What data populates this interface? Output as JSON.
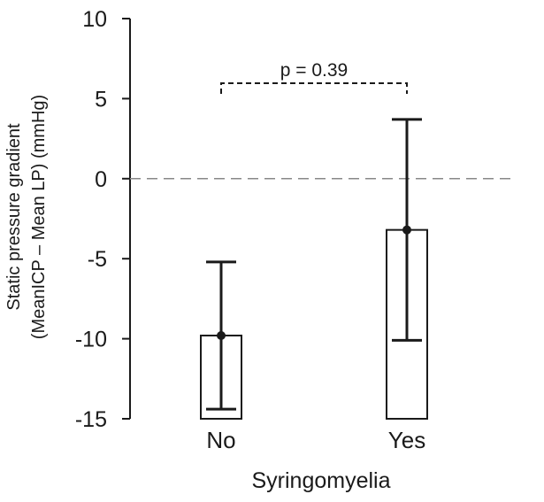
{
  "chart_data": {
    "type": "bar",
    "categories": [
      "No",
      "Yes"
    ],
    "series": [
      {
        "values": [
          -9.8,
          -3.2
        ],
        "error_low": [
          -14.4,
          -10.1
        ],
        "error_high": [
          -5.2,
          3.7
        ]
      }
    ],
    "xlabel": "Syringomyelia",
    "ylabel_lines": [
      "Static pressure gradient",
      "(MeanICP – Mean LP) (mmHg)"
    ],
    "ylim": [
      -15,
      10
    ],
    "yticks": [
      10,
      5,
      0,
      -5,
      -10,
      -15
    ],
    "ytick_labels": [
      "10",
      "5",
      "0",
      "-5",
      "-10",
      "-15"
    ],
    "reference_line": {
      "y": 0,
      "style": "dashed",
      "color": "#888888"
    },
    "annotation": {
      "text": "p = 0.39",
      "style": "dashed bracket between categories"
    },
    "bar_fill": "#ffffff",
    "stroke_color": "#1a1a1a",
    "grid": false,
    "legend": "none"
  }
}
